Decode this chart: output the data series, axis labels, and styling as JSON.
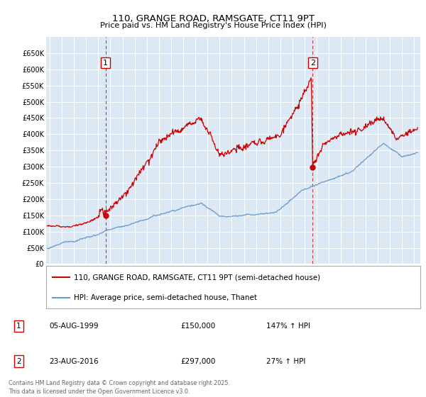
{
  "title_line1": "110, GRANGE ROAD, RAMSGATE, CT11 9PT",
  "title_line2": "Price paid vs. HM Land Registry's House Price Index (HPI)",
  "plot_bg_color": "#dce9f5",
  "ylim": [
    0,
    700000
  ],
  "yticks": [
    0,
    50000,
    100000,
    150000,
    200000,
    250000,
    300000,
    350000,
    400000,
    450000,
    500000,
    550000,
    600000,
    650000
  ],
  "ytick_labels": [
    "£0",
    "£50K",
    "£100K",
    "£150K",
    "£200K",
    "£250K",
    "£300K",
    "£350K",
    "£400K",
    "£450K",
    "£500K",
    "£550K",
    "£600K",
    "£650K"
  ],
  "xlim_start": 1994.7,
  "xlim_end": 2025.5,
  "xticks": [
    1995,
    1996,
    1997,
    1998,
    1999,
    2000,
    2001,
    2002,
    2003,
    2004,
    2005,
    2006,
    2007,
    2008,
    2009,
    2010,
    2011,
    2012,
    2013,
    2014,
    2015,
    2016,
    2017,
    2018,
    2019,
    2020,
    2021,
    2022,
    2023,
    2024,
    2025
  ],
  "red_line_color": "#cc0000",
  "blue_line_color": "#6699cc",
  "marker1_x": 1999.6,
  "marker1_y": 150000,
  "marker2_x": 2016.65,
  "marker2_y": 297000,
  "legend_label1": "110, GRANGE ROAD, RAMSGATE, CT11 9PT (semi-detached house)",
  "legend_label2": "HPI: Average price, semi-detached house, Thanet",
  "annotation1_label": "1",
  "annotation1_date": "05-AUG-1999",
  "annotation1_price": "£150,000",
  "annotation1_hpi": "147% ↑ HPI",
  "annotation2_label": "2",
  "annotation2_date": "23-AUG-2016",
  "annotation2_price": "£297,000",
  "annotation2_hpi": "27% ↑ HPI",
  "footer": "Contains HM Land Registry data © Crown copyright and database right 2025.\nThis data is licensed under the Open Government Licence v3.0."
}
